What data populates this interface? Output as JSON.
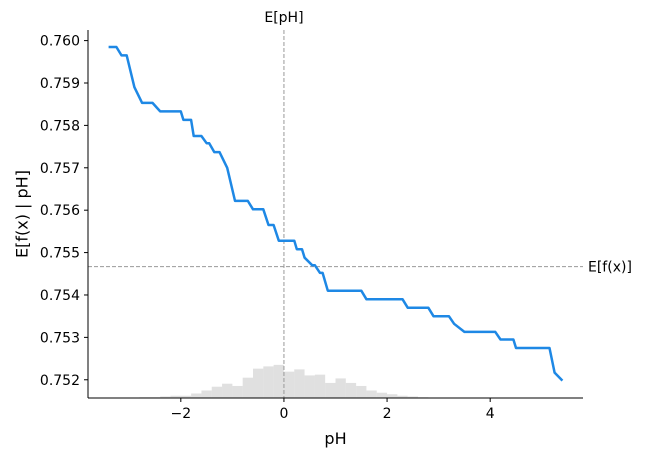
{
  "chart_data": {
    "type": "line",
    "title": "",
    "xlabel": "pH",
    "ylabel": "E[f(x) | pH]",
    "xlim": [
      -3.8,
      5.8
    ],
    "ylim": [
      0.75157,
      0.76025
    ],
    "x_ticks": [
      -2,
      0,
      2,
      4
    ],
    "x_tick_labels": [
      "−2",
      "0",
      "2",
      "4"
    ],
    "y_ticks": [
      0.752,
      0.753,
      0.754,
      0.755,
      0.756,
      0.757,
      0.758,
      0.759,
      0.76
    ],
    "y_tick_labels": [
      "0.752",
      "0.753",
      "0.754",
      "0.755",
      "0.756",
      "0.757",
      "0.758",
      "0.759",
      "0.760"
    ],
    "grid": false,
    "colors": {
      "line": "#1e88e5",
      "histogram": "#cccccc",
      "reference": "#999999"
    },
    "series": [
      {
        "x": [
          -3.4,
          -3.25,
          -3.15,
          -3.05,
          -2.9,
          -2.75,
          -2.55,
          -2.4,
          -2.2,
          -2.0,
          -1.95,
          -1.8,
          -1.75,
          -1.6,
          -1.5,
          -1.45,
          -1.35,
          -1.25,
          -1.1,
          -0.95,
          -0.9,
          -0.7,
          -0.6,
          -0.4,
          -0.3,
          -0.2,
          -0.1,
          0.0,
          0.05,
          0.2,
          0.25,
          0.35,
          0.4,
          0.55,
          0.6,
          0.7,
          0.75,
          0.85,
          0.95,
          1.0,
          1.1,
          1.5,
          1.6,
          1.7,
          2.3,
          2.4,
          2.5,
          2.8,
          2.9,
          3.2,
          3.3,
          3.5,
          4.1,
          4.2,
          4.45,
          4.5,
          5.1,
          5.15,
          5.25,
          5.4
        ],
        "y": [
          0.75985,
          0.75985,
          0.75965,
          0.75965,
          0.7589,
          0.75853,
          0.75853,
          0.75833,
          0.75833,
          0.75833,
          0.75813,
          0.75813,
          0.75775,
          0.75775,
          0.75758,
          0.75758,
          0.75737,
          0.75737,
          0.757,
          0.75622,
          0.75622,
          0.75622,
          0.75602,
          0.75602,
          0.75565,
          0.75565,
          0.75528,
          0.75528,
          0.75528,
          0.75528,
          0.75508,
          0.75508,
          0.75488,
          0.7547,
          0.7547,
          0.75452,
          0.75452,
          0.7541,
          0.7541,
          0.7541,
          0.7541,
          0.7541,
          0.7539,
          0.7539,
          0.7539,
          0.7537,
          0.7537,
          0.7537,
          0.7535,
          0.7535,
          0.75332,
          0.75313,
          0.75313,
          0.75295,
          0.75295,
          0.75275,
          0.75275,
          0.75275,
          0.75217,
          0.75198
        ]
      }
    ],
    "histogram": {
      "bin_edges": [
        -2.8,
        -2.6,
        -2.4,
        -2.2,
        -2.0,
        -1.8,
        -1.6,
        -1.4,
        -1.2,
        -1.0,
        -0.8,
        -0.6,
        -0.4,
        -0.2,
        0.0,
        0.2,
        0.4,
        0.6,
        0.8,
        1.0,
        1.2,
        1.4,
        1.6,
        1.8,
        2.0,
        2.2,
        2.4,
        2.6,
        2.8
      ],
      "counts": [
        1,
        1,
        2,
        3,
        3,
        6,
        10,
        15,
        19,
        16,
        27,
        39,
        42,
        44,
        35,
        38,
        30,
        31,
        20,
        26,
        20,
        16,
        10,
        7,
        5,
        3,
        2,
        1
      ]
    },
    "reference_lines": {
      "vertical": {
        "label": "E[pH]",
        "x": 0.0
      },
      "horizontal": {
        "label": "E[f(x)]",
        "y": 0.75467
      }
    }
  }
}
